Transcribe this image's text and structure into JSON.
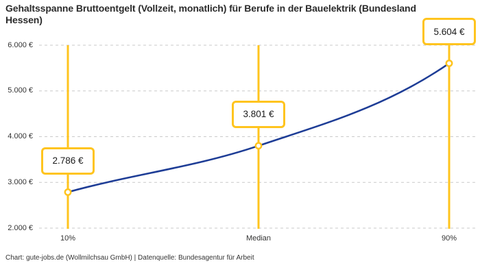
{
  "header": {
    "title": "Gehaltsspanne Bruttoentgelt (Vollzeit, monatlich) für Berufe in der Bauelektrik (Bundesland Hessen)"
  },
  "footer": {
    "text": "Chart: gute-jobs.de (Wollmilchsau GmbH) | Datenquelle: Bundesagentur für Arbeit"
  },
  "chart_data": {
    "type": "line",
    "title": "Gehaltsspanne Bruttoentgelt (Vollzeit, monatlich) für Berufe in der Bauelektrik (Bundesland Hessen)",
    "categories": [
      "10%",
      "Median",
      "90%"
    ],
    "values": [
      2786,
      3801,
      5604
    ],
    "point_labels": [
      "2.786 €",
      "3.801 €",
      "5.604 €"
    ],
    "y_ticks": [
      2000,
      3000,
      4000,
      5000,
      6000
    ],
    "y_tick_labels": [
      "2.000 €",
      "3.000 €",
      "4.000 €",
      "5.000 €",
      "6.000 €"
    ],
    "ylim": [
      2000,
      6000
    ],
    "xlabel": "",
    "ylabel": "",
    "grid": "horizontal-dashed",
    "legend": "none",
    "colors": {
      "line": "#1e3d96",
      "accent": "#ffc41e",
      "grid": "#c9c9c9",
      "label_text": "#1a1a1a",
      "tick_text": "#333333",
      "title_text": "#2b2b2b"
    }
  }
}
